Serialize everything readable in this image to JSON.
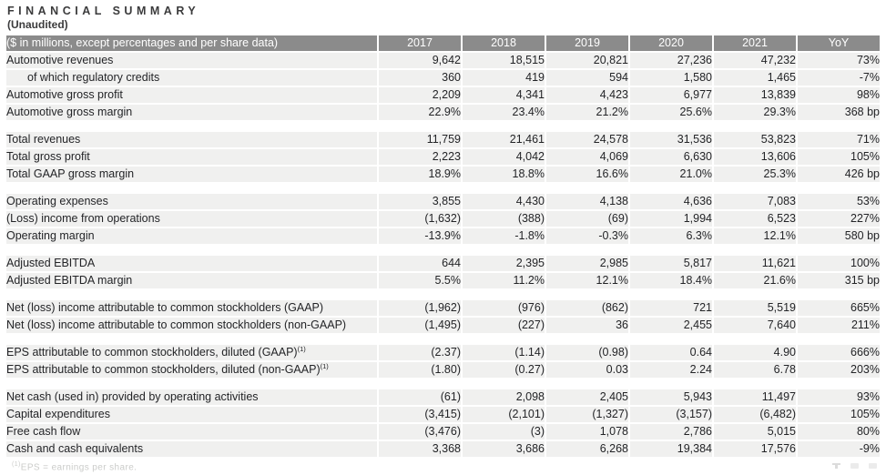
{
  "title": "FINANCIAL SUMMARY",
  "subtitle": "(Unaudited)",
  "colors": {
    "header_bg": "#8b8b8b",
    "header_text": "#ffffff",
    "row_bg": "#f0f0ef",
    "highlight_2021_bg": "#f2dbda",
    "body_text": "#232427",
    "footnote_text": "#cbccca"
  },
  "table": {
    "header": {
      "label": "($ in millions, except percentages and per share data)",
      "columns": [
        "2017",
        "2018",
        "2019",
        "2020",
        "2021",
        "YoY"
      ]
    },
    "highlight_column": "2021",
    "sections": [
      {
        "rows": [
          {
            "label": "Automotive revenues",
            "indent": false,
            "values": [
              "9,642",
              "18,515",
              "20,821",
              "27,236",
              "47,232",
              "73%"
            ]
          },
          {
            "label": "of which regulatory credits",
            "indent": true,
            "values": [
              "360",
              "419",
              "594",
              "1,580",
              "1,465",
              "-7%"
            ]
          },
          {
            "label": "Automotive gross profit",
            "indent": false,
            "values": [
              "2,209",
              "4,341",
              "4,423",
              "6,977",
              "13,839",
              "98%"
            ]
          },
          {
            "label": "Automotive gross margin",
            "indent": false,
            "values": [
              "22.9%",
              "23.4%",
              "21.2%",
              "25.6%",
              "29.3%",
              "368 bp"
            ]
          }
        ]
      },
      {
        "rows": [
          {
            "label": "Total revenues",
            "indent": false,
            "values": [
              "11,759",
              "21,461",
              "24,578",
              "31,536",
              "53,823",
              "71%"
            ]
          },
          {
            "label": "Total gross profit",
            "indent": false,
            "values": [
              "2,223",
              "4,042",
              "4,069",
              "6,630",
              "13,606",
              "105%"
            ]
          },
          {
            "label": "Total GAAP gross margin",
            "indent": false,
            "values": [
              "18.9%",
              "18.8%",
              "16.6%",
              "21.0%",
              "25.3%",
              "426 bp"
            ]
          }
        ]
      },
      {
        "rows": [
          {
            "label": "Operating expenses",
            "indent": false,
            "values": [
              "3,855",
              "4,430",
              "4,138",
              "4,636",
              "7,083",
              "53%"
            ]
          },
          {
            "label": "(Loss) income from operations",
            "indent": false,
            "values": [
              "(1,632)",
              "(388)",
              "(69)",
              "1,994",
              "6,523",
              "227%"
            ]
          },
          {
            "label": "Operating margin",
            "indent": false,
            "values": [
              "-13.9%",
              "-1.8%",
              "-0.3%",
              "6.3%",
              "12.1%",
              "580 bp"
            ]
          }
        ]
      },
      {
        "rows": [
          {
            "label": "Adjusted EBITDA",
            "indent": false,
            "values": [
              "644",
              "2,395",
              "2,985",
              "5,817",
              "11,621",
              "100%"
            ]
          },
          {
            "label": "Adjusted EBITDA margin",
            "indent": false,
            "values": [
              "5.5%",
              "11.2%",
              "12.1%",
              "18.4%",
              "21.6%",
              "315 bp"
            ]
          }
        ]
      },
      {
        "rows": [
          {
            "label": "Net (loss) income attributable to common stockholders (GAAP)",
            "indent": false,
            "values": [
              "(1,962)",
              "(976)",
              "(862)",
              "721",
              "5,519",
              "665%"
            ]
          },
          {
            "label": "Net (loss) income attributable to common stockholders (non-GAAP)",
            "indent": false,
            "values": [
              "(1,495)",
              "(227)",
              "36",
              "2,455",
              "7,640",
              "211%"
            ]
          }
        ]
      },
      {
        "rows": [
          {
            "label": "EPS attributable to common stockholders, diluted (GAAP)",
            "label_sup": "(1)",
            "indent": false,
            "values": [
              "(2.37)",
              "(1.14)",
              "(0.98)",
              "0.64",
              "4.90",
              "666%"
            ]
          },
          {
            "label": "EPS attributable to common stockholders, diluted (non-GAAP)",
            "label_sup": "(1)",
            "indent": false,
            "values": [
              "(1.80)",
              "(0.27)",
              "0.03",
              "2.24",
              "6.78",
              "203%"
            ]
          }
        ]
      },
      {
        "rows": [
          {
            "label": "Net cash (used in) provided by operating activities",
            "indent": false,
            "values": [
              "(61)",
              "2,098",
              "2,405",
              "5,943",
              "11,497",
              "93%"
            ]
          },
          {
            "label": "Capital expenditures",
            "indent": false,
            "values": [
              "(3,415)",
              "(2,101)",
              "(1,327)",
              "(3,157)",
              "(6,482)",
              "105%"
            ]
          },
          {
            "label": "Free cash flow",
            "indent": false,
            "values": [
              "(3,476)",
              "(3)",
              "1,078",
              "2,786",
              "5,015",
              "80%"
            ]
          },
          {
            "label": "Cash and cash equivalents",
            "indent": false,
            "values": [
              "3,368",
              "3,686",
              "6,268",
              "19,384",
              "17,576",
              "-9%"
            ]
          }
        ]
      }
    ]
  },
  "footnote": {
    "sup": "(1)",
    "text": "EPS = earnings per share."
  },
  "footer": {
    "icons": [
      "nav-marker-icon",
      "nav-marker-icon",
      "nav-marker-icon"
    ]
  }
}
